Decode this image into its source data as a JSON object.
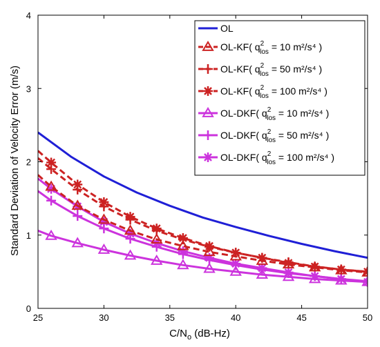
{
  "chart_data": {
    "type": "line",
    "xlabel": {
      "main": "C/N",
      "sub": "o",
      "rest": " (dB-Hz)"
    },
    "ylabel": "Standard Deviation of Velocity Error (m/s)",
    "xlim": [
      25,
      50
    ],
    "ylim": [
      0,
      4
    ],
    "xticks": [
      "25",
      "30",
      "35",
      "40",
      "45",
      "50"
    ],
    "yticks": [
      "0",
      "1",
      "2",
      "3",
      "4"
    ],
    "grid": false,
    "legend_position": "top-right",
    "series": [
      {
        "name": "OL",
        "label": {
          "pre": "OL",
          "sup": "",
          "sub": "",
          "post": ""
        },
        "color": "#1f1fd6",
        "dash": "solid",
        "marker": "none",
        "x": [
          25,
          27.5,
          30,
          32.5,
          35,
          37.5,
          40,
          42.5,
          45,
          47.5,
          50
        ],
        "y": [
          2.4,
          2.07,
          1.8,
          1.58,
          1.4,
          1.24,
          1.11,
          0.99,
          0.88,
          0.78,
          0.69
        ]
      },
      {
        "name": "OL-KF( q2los = 10 m2/s4 )",
        "label": {
          "pre": "OL-KF( q",
          "sup": "2",
          "sub": "los",
          "post": " = 10 m²/s⁴ )"
        },
        "color": "#cc2222",
        "dash": "dashed",
        "marker": "triangle",
        "x": [
          25,
          26,
          28,
          30,
          32,
          34,
          36,
          38,
          40,
          42,
          44,
          46,
          48,
          50
        ],
        "y": [
          1.82,
          1.66,
          1.4,
          1.21,
          1.06,
          0.94,
          0.85,
          0.77,
          0.71,
          0.65,
          0.6,
          0.56,
          0.52,
          0.49
        ]
      },
      {
        "name": "OL-KF( q2los = 50 m2/s4 )",
        "label": {
          "pre": "OL-KF( q",
          "sup": "2",
          "sub": "los",
          "post": " = 50 m²/s⁴ )"
        },
        "color": "#cc2222",
        "dash": "dashed",
        "marker": "plus",
        "x": [
          25,
          26,
          28,
          30,
          32,
          34,
          36,
          38,
          40,
          42,
          44,
          46,
          48,
          50
        ],
        "y": [
          2.05,
          1.9,
          1.62,
          1.39,
          1.21,
          1.06,
          0.94,
          0.84,
          0.76,
          0.69,
          0.63,
          0.57,
          0.53,
          0.5
        ]
      },
      {
        "name": "OL-KF( q2los = 100 m2/s4 )",
        "label": {
          "pre": "OL-KF( q",
          "sup": "2",
          "sub": "los",
          "post": " = 100 m²/s⁴ )"
        },
        "color": "#cc2222",
        "dash": "dashed",
        "marker": "asterisk",
        "x": [
          25,
          26,
          28,
          30,
          32,
          34,
          36,
          38,
          40,
          42,
          44,
          46,
          48,
          50
        ],
        "y": [
          2.15,
          1.99,
          1.69,
          1.45,
          1.25,
          1.09,
          0.96,
          0.85,
          0.76,
          0.69,
          0.62,
          0.57,
          0.53,
          0.5
        ]
      },
      {
        "name": "OL-DKF( q2los = 10 m2/s4 )",
        "label": {
          "pre": "OL-DKF( q",
          "sup": "2",
          "sub": "los",
          "post": " = 10 m²/s⁴ )"
        },
        "color": "#cc33dd",
        "dash": "solid",
        "marker": "triangle",
        "x": [
          25,
          26,
          28,
          30,
          32,
          34,
          36,
          38,
          40,
          42,
          44,
          46,
          48,
          50
        ],
        "y": [
          1.06,
          0.99,
          0.89,
          0.8,
          0.72,
          0.65,
          0.59,
          0.54,
          0.5,
          0.46,
          0.43,
          0.4,
          0.38,
          0.36
        ]
      },
      {
        "name": "OL-DKF( q2los = 50 m2/s4 )",
        "label": {
          "pre": "OL-DKF( q",
          "sup": "2",
          "sub": "los",
          "post": " = 50 m²/s⁴ )"
        },
        "color": "#cc33dd",
        "dash": "solid",
        "marker": "plus",
        "x": [
          25,
          26,
          28,
          30,
          32,
          34,
          36,
          38,
          40,
          42,
          44,
          46,
          48,
          50
        ],
        "y": [
          1.6,
          1.47,
          1.26,
          1.09,
          0.95,
          0.84,
          0.74,
          0.66,
          0.59,
          0.53,
          0.48,
          0.44,
          0.4,
          0.37
        ]
      },
      {
        "name": "OL-DKF( q2los = 100 m2/s4 )",
        "label": {
          "pre": "OL-DKF( q",
          "sup": "2",
          "sub": "los",
          "post": " = 100 m²/s⁴ )"
        },
        "color": "#cc33dd",
        "dash": "solid",
        "marker": "asterisk",
        "x": [
          25,
          26,
          28,
          30,
          32,
          34,
          36,
          38,
          40,
          42,
          44,
          46,
          48,
          50
        ],
        "y": [
          1.77,
          1.63,
          1.39,
          1.18,
          1.02,
          0.89,
          0.78,
          0.69,
          0.61,
          0.55,
          0.49,
          0.44,
          0.4,
          0.36
        ]
      }
    ]
  }
}
